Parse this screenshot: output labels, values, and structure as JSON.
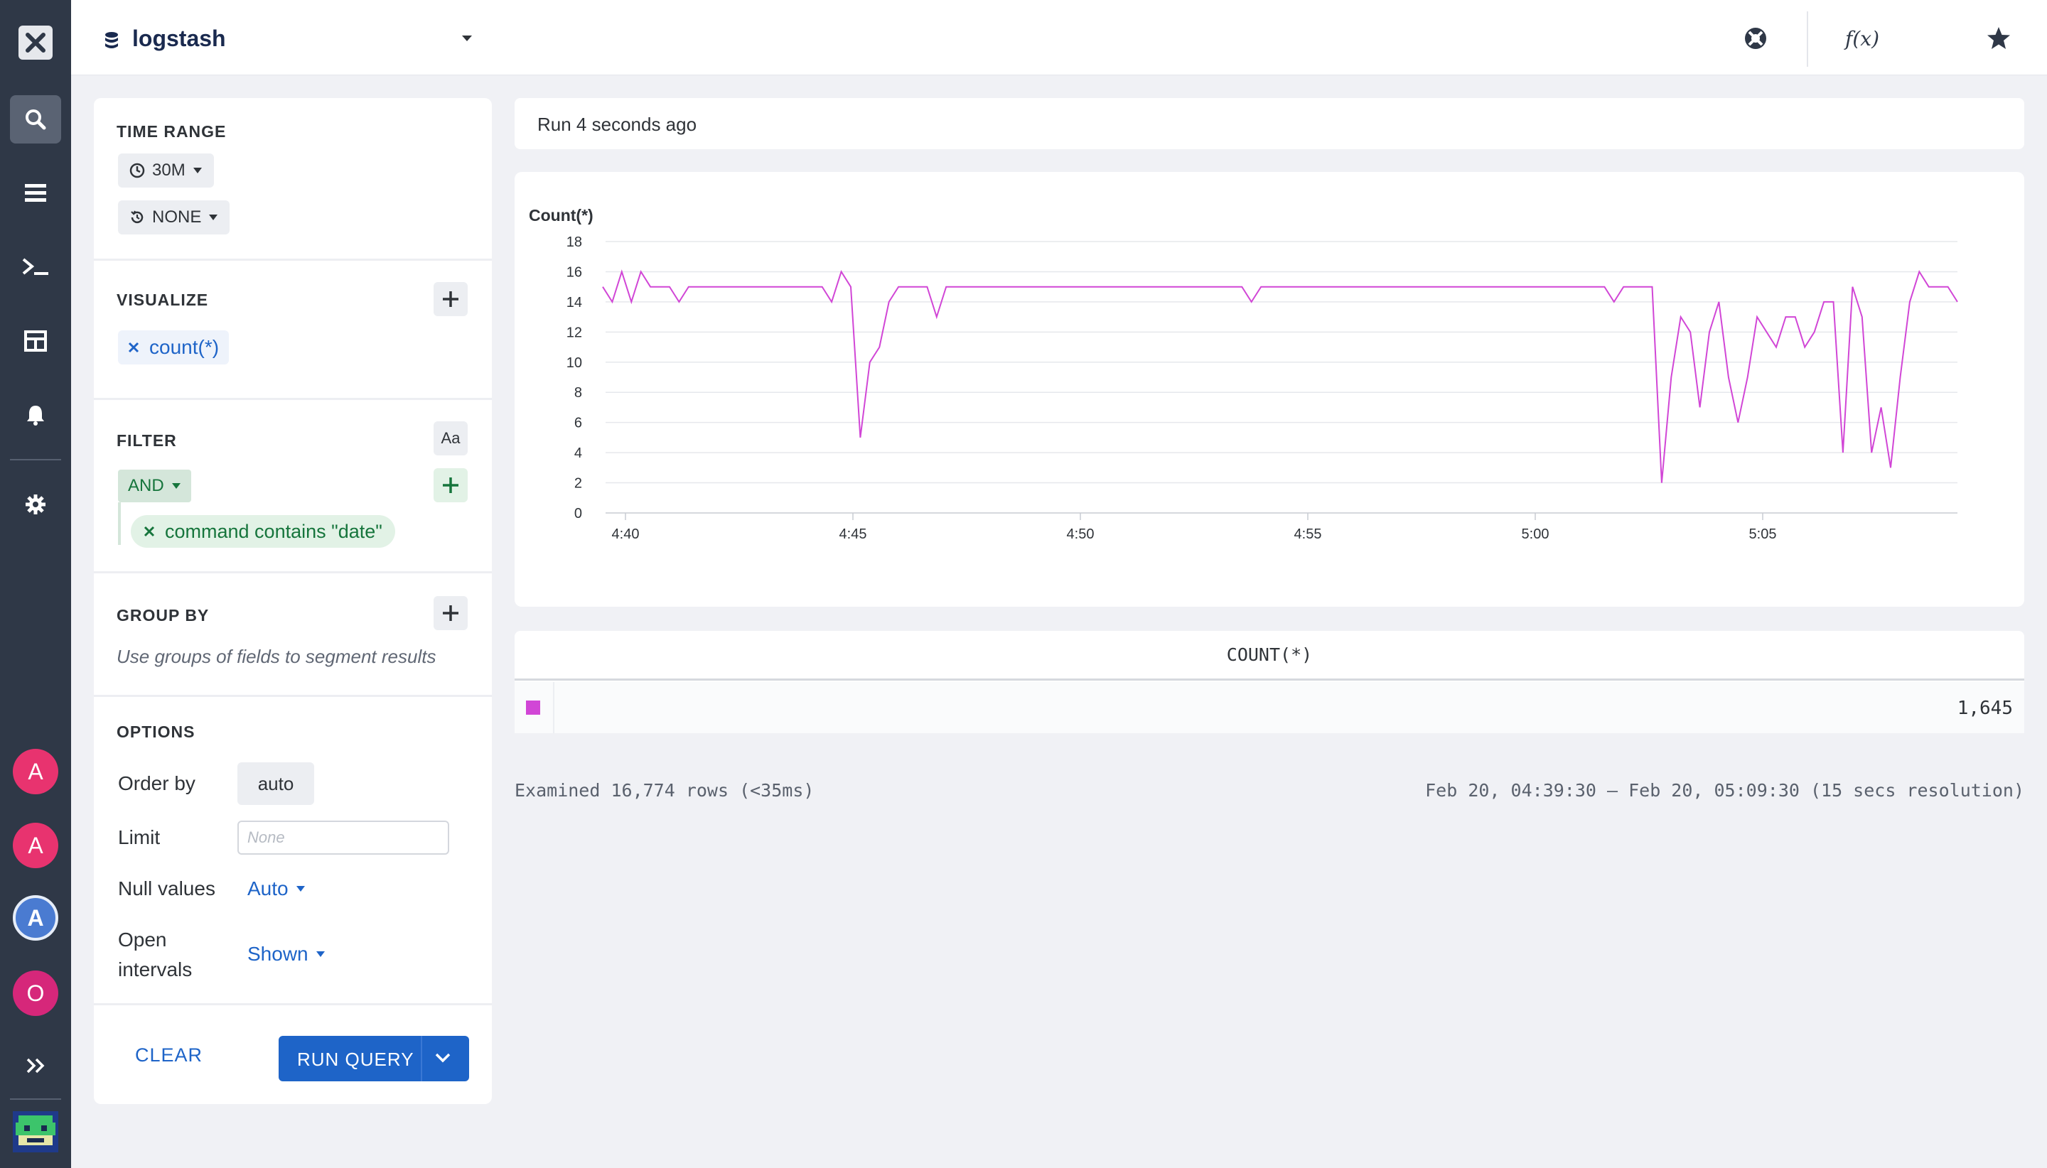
{
  "topbar": {
    "dataset": "logstash",
    "icons": [
      "support-icon",
      "function-icon",
      "star-icon",
      "history-icon"
    ],
    "function_label": "f(x)"
  },
  "nav": {
    "items": [
      "search-icon",
      "list-icon",
      "terminal-icon",
      "layout-icon",
      "bell-icon",
      "gear-icon"
    ],
    "avatars": [
      "A",
      "A",
      "A",
      "O"
    ],
    "expand_icon": "chevrons-right-icon"
  },
  "query": {
    "time_range": {
      "title": "TIME RANGE",
      "range": "30M",
      "compare": "NONE"
    },
    "visualize": {
      "title": "VISUALIZE",
      "items": [
        "count(*)"
      ]
    },
    "filter": {
      "title": "FILTER",
      "case_label": "Aa",
      "operator": "AND",
      "conditions": [
        "command contains \"date\""
      ]
    },
    "group_by": {
      "title": "GROUP BY",
      "hint": "Use groups of fields to segment results"
    },
    "options": {
      "title": "OPTIONS",
      "order_by_label": "Order by",
      "order_by_value": "auto",
      "limit_label": "Limit",
      "limit_placeholder": "None",
      "null_values_label": "Null values",
      "null_values_value": "Auto",
      "open_intervals_label_1": "Open",
      "open_intervals_label_2": "intervals",
      "open_intervals_value": "Shown"
    },
    "clear_label": "CLEAR",
    "run_label": "RUN QUERY"
  },
  "results": {
    "run_status": "Run 4 seconds ago",
    "table_header": "COUNT(*)",
    "table_value": "1,645",
    "examined": "Examined 16,774 rows (<35ms)",
    "range_text": "Feb 20, 04:39:30 – Feb 20, 05:09:30 (15 secs resolution)"
  },
  "chart_data": {
    "type": "line",
    "title": "",
    "xlabel": "",
    "ylabel": "Count(*)",
    "ylim": [
      0,
      18
    ],
    "yticks": [
      0,
      2,
      4,
      6,
      8,
      10,
      12,
      14,
      16,
      18
    ],
    "x_ticks": [
      "4:40",
      "4:45",
      "4:50",
      "4:55",
      "5:00",
      "5:05"
    ],
    "grid": true,
    "color": "#d146d6",
    "series": [
      {
        "values": [
          15,
          14,
          16,
          14,
          16,
          15,
          15,
          15,
          14,
          15,
          15,
          15,
          15,
          15,
          15,
          15,
          15,
          15,
          15,
          15,
          15,
          15,
          15,
          15,
          14,
          16,
          15,
          5,
          10,
          11,
          14,
          15,
          15,
          15,
          15,
          13,
          15,
          15,
          15,
          15,
          15,
          15,
          15,
          15,
          15,
          15,
          15,
          15,
          15,
          15,
          15,
          15,
          15,
          15,
          15,
          15,
          15,
          15,
          15,
          15,
          15,
          15,
          15,
          15,
          15,
          15,
          15,
          15,
          14,
          15,
          15,
          15,
          15,
          15,
          15,
          15,
          15,
          15,
          15,
          15,
          15,
          15,
          15,
          15,
          15,
          15,
          15,
          15,
          15,
          15,
          15,
          15,
          15,
          15,
          15,
          15,
          15,
          15,
          15,
          15,
          15,
          15,
          15,
          15,
          15,
          15,
          14,
          15,
          15,
          15,
          15,
          2,
          9,
          13,
          12,
          7,
          12,
          14,
          9,
          6,
          9,
          13,
          12,
          11,
          13,
          13,
          11,
          12,
          14,
          14,
          4,
          15,
          13,
          4,
          7,
          3,
          9,
          14,
          16,
          15,
          15,
          15,
          14
        ]
      }
    ]
  }
}
